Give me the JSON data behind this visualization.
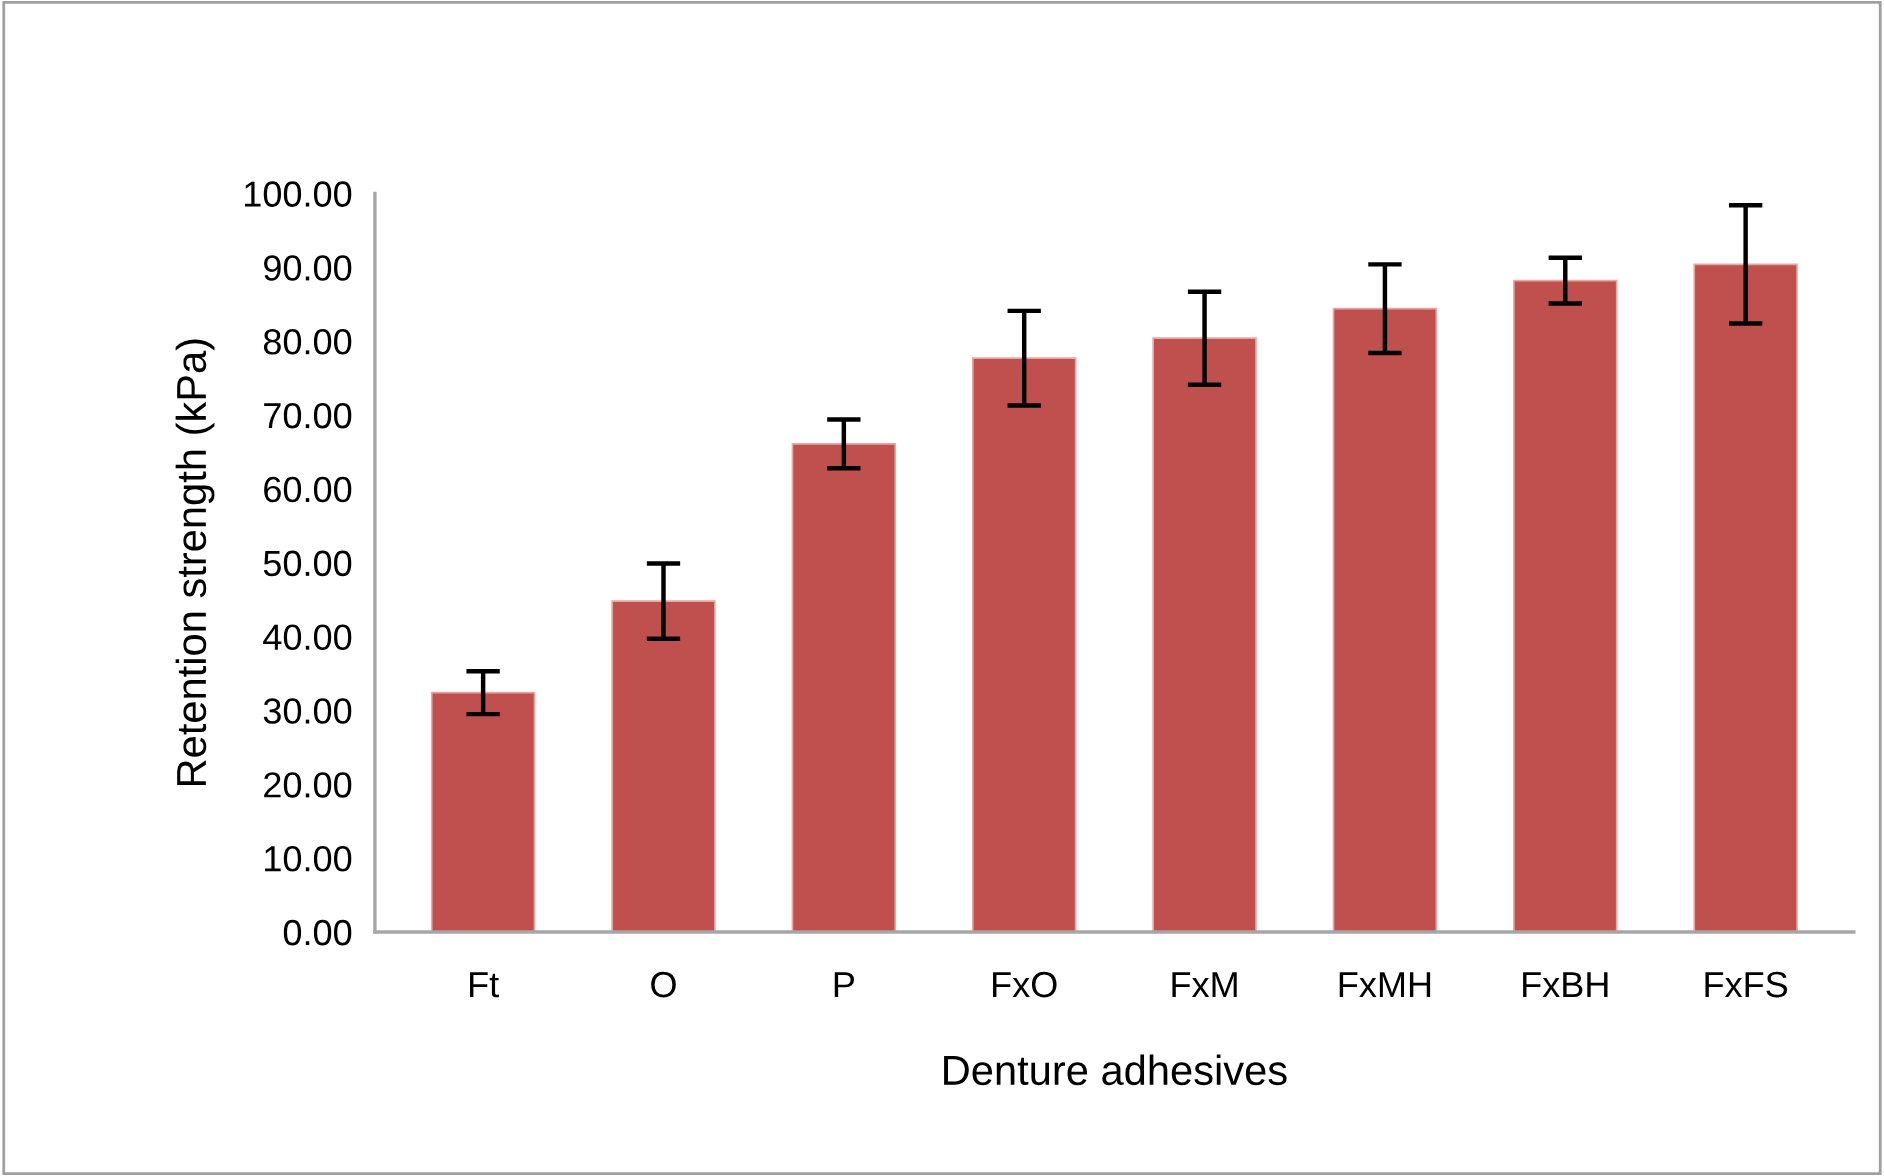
{
  "chart_data": {
    "type": "bar",
    "xlabel": "Denture adhesives",
    "ylabel": "Retention strength (kPa)",
    "categories": [
      "Ft",
      "O",
      "P",
      "FxO",
      "FxM",
      "FxMH",
      "FxBH",
      "FxFS"
    ],
    "values": [
      32.4,
      44.8,
      66.1,
      77.7,
      80.4,
      84.4,
      88.2,
      90.4
    ],
    "errors": [
      2.9,
      5.1,
      3.3,
      6.4,
      6.3,
      6.0,
      3.1,
      8.0
    ],
    "color": "#c0504d",
    "ylim": [
      0,
      100
    ],
    "yticks": [
      {
        "value": 0,
        "label": "0.00"
      },
      {
        "value": 10,
        "label": "10.00"
      },
      {
        "value": 20,
        "label": "20.00"
      },
      {
        "value": 30,
        "label": "30.00"
      },
      {
        "value": 40,
        "label": "40.00"
      },
      {
        "value": 50,
        "label": "50.00"
      },
      {
        "value": 60,
        "label": "60.00"
      },
      {
        "value": 70,
        "label": "70.00"
      },
      {
        "value": 80,
        "label": "80.00"
      },
      {
        "value": 90,
        "label": "90.00"
      },
      {
        "value": 100,
        "label": "100.00"
      }
    ],
    "grid": false,
    "legend": false
  }
}
